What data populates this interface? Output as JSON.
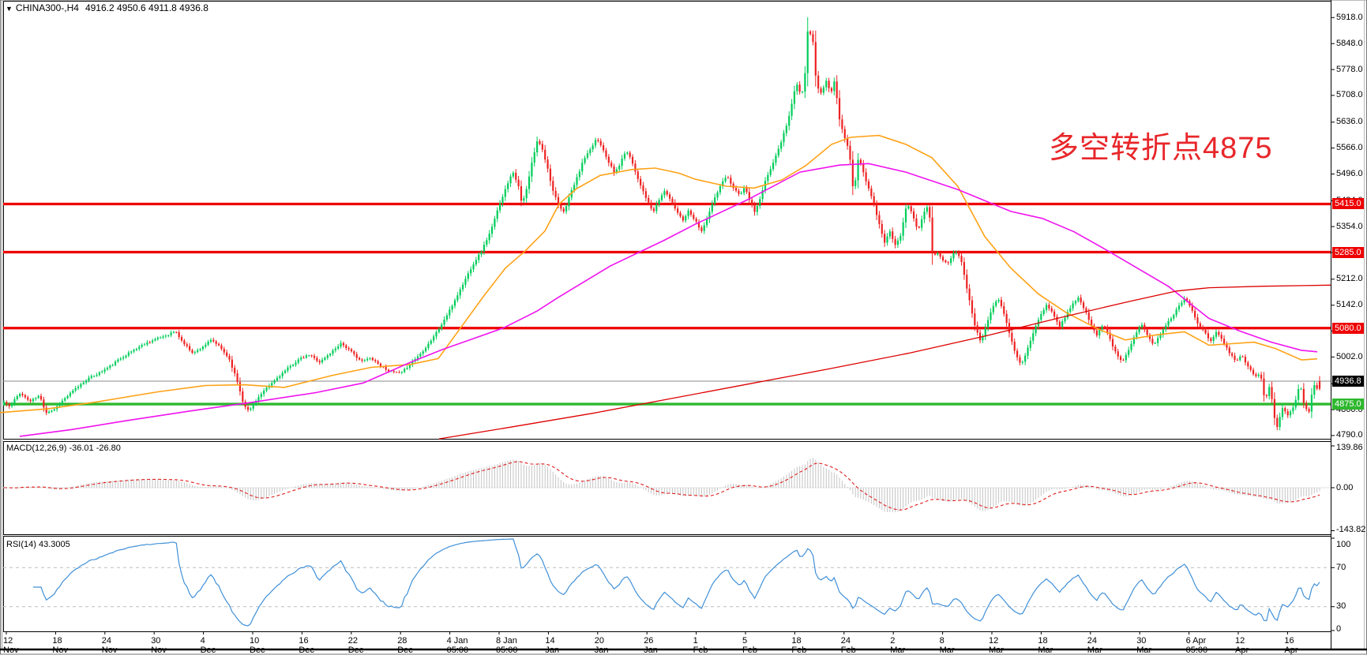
{
  "window": {
    "dropdown_icon": "▼",
    "title_symbol": "CHINA300-,H4",
    "title_ohlc": "4916.2 4950.6 4911.8 4936.8"
  },
  "colors": {
    "up_candle": "#00cd5a",
    "down_candle": "#ee2222",
    "level_line_red": "#ee0000",
    "level_line_green": "#2eb82e",
    "current_price_line": "#888888",
    "ma_fast": "#ffa216",
    "ma_mid": "#ef13ef",
    "ma_slow": "#dd0000",
    "macd_hist": "#c4c4c4",
    "macd_signal": "#e02020",
    "rsi_line": "#4090d8",
    "annotation_red": "#e8262a",
    "badge_black": "#000000"
  },
  "chart_data": {
    "type": "candlestick",
    "symbol": "CHINA300-",
    "timeframe": "H4",
    "title": "CHINA300-,H4 4916.2 4950.6 4911.8 4936.8",
    "last_candle": {
      "open": 4916.2,
      "high": 4950.6,
      "low": 4911.8,
      "close": 4936.8
    },
    "current_price": 4936.8,
    "y_axis": {
      "ticks": [
        5918.0,
        5848.0,
        5778.0,
        5708.0,
        5636.0,
        5566.0,
        5496.0,
        5424.0,
        5354.0,
        5284.0,
        5212.0,
        5142.0,
        5072.0,
        5002.0,
        4930.0,
        4860.0,
        4790.0
      ],
      "range": [
        4781,
        5940
      ]
    },
    "x_axis": {
      "labels": [
        "12 Nov 2020",
        "18 Nov 05:00",
        "24 Nov 05:00",
        "30 Nov 05:00",
        "4 Dec 05:00",
        "10 Dec 05:00",
        "16 Dec 05:00",
        "22 Dec 05:00",
        "28 Dec 05:00",
        "4 Jan 05:00",
        "8 Jan 05:00",
        "14 Jan 05:00",
        "20 Jan 05:00",
        "26 Jan 05:00",
        "1 Feb 05:00",
        "5 Feb 05:00",
        "18 Feb 05:00",
        "24 Feb 05:00",
        "2 Mar 05:00",
        "8 Mar 05:00",
        "12 Mar 05:00",
        "18 Mar 05:00",
        "24 Mar 05:00",
        "30 Mar 05:00",
        "6 Apr 05:00",
        "12 Apr 05:00",
        "16 Apr 05:00"
      ]
    },
    "price_lines": [
      {
        "price": 5415.0,
        "label": "5415.0",
        "color": "#ee0000",
        "width": 3.2
      },
      {
        "price": 5285.0,
        "label": "5285.0",
        "color": "#ee0000",
        "width": 3.2
      },
      {
        "price": 5080.0,
        "label": "5080.0",
        "color": "#ee0000",
        "width": 3.2
      },
      {
        "price": 4875.0,
        "label": "4875.0",
        "color": "#2eb82e",
        "width": 3.4
      }
    ],
    "close_anchors": [
      [
        0,
        4890
      ],
      [
        12,
        4868
      ],
      [
        25,
        4905
      ],
      [
        38,
        4882
      ],
      [
        50,
        4898
      ],
      [
        58,
        4852
      ],
      [
        68,
        4860
      ],
      [
        80,
        4886
      ],
      [
        95,
        4915
      ],
      [
        110,
        4942
      ],
      [
        125,
        4958
      ],
      [
        140,
        4978
      ],
      [
        155,
        5002
      ],
      [
        170,
        5022
      ],
      [
        185,
        5040
      ],
      [
        200,
        5052
      ],
      [
        212,
        5062
      ],
      [
        222,
        5072
      ],
      [
        232,
        5040
      ],
      [
        245,
        5012
      ],
      [
        258,
        5032
      ],
      [
        268,
        5048
      ],
      [
        278,
        5030
      ],
      [
        290,
        4998
      ],
      [
        300,
        4940
      ],
      [
        308,
        4878
      ],
      [
        315,
        4855
      ],
      [
        325,
        4888
      ],
      [
        338,
        4918
      ],
      [
        352,
        4948
      ],
      [
        365,
        4972
      ],
      [
        378,
        4995
      ],
      [
        392,
        5008
      ],
      [
        405,
        4988
      ],
      [
        418,
        5012
      ],
      [
        432,
        5040
      ],
      [
        445,
        5015
      ],
      [
        458,
        4990
      ],
      [
        470,
        5000
      ],
      [
        482,
        4978
      ],
      [
        495,
        4962
      ],
      [
        508,
        4958
      ],
      [
        520,
        4985
      ],
      [
        533,
        5012
      ],
      [
        545,
        5045
      ],
      [
        557,
        5082
      ],
      [
        570,
        5130
      ],
      [
        583,
        5185
      ],
      [
        597,
        5245
      ],
      [
        610,
        5290
      ],
      [
        622,
        5345
      ],
      [
        633,
        5418
      ],
      [
        641,
        5460
      ],
      [
        649,
        5505
      ],
      [
        656,
        5468
      ],
      [
        661,
        5412
      ],
      [
        668,
        5465
      ],
      [
        674,
        5532
      ],
      [
        681,
        5590
      ],
      [
        687,
        5562
      ],
      [
        693,
        5515
      ],
      [
        700,
        5452
      ],
      [
        707,
        5412
      ],
      [
        714,
        5392
      ],
      [
        722,
        5442
      ],
      [
        730,
        5482
      ],
      [
        739,
        5535
      ],
      [
        748,
        5562
      ],
      [
        755,
        5592
      ],
      [
        762,
        5572
      ],
      [
        770,
        5532
      ],
      [
        778,
        5498
      ],
      [
        785,
        5522
      ],
      [
        792,
        5558
      ],
      [
        799,
        5540
      ],
      [
        806,
        5492
      ],
      [
        813,
        5458
      ],
      [
        820,
        5422
      ],
      [
        827,
        5392
      ],
      [
        835,
        5428
      ],
      [
        842,
        5452
      ],
      [
        850,
        5422
      ],
      [
        858,
        5392
      ],
      [
        865,
        5372
      ],
      [
        872,
        5398
      ],
      [
        880,
        5372
      ],
      [
        888,
        5342
      ],
      [
        895,
        5372
      ],
      [
        903,
        5422
      ],
      [
        912,
        5462
      ],
      [
        920,
        5492
      ],
      [
        928,
        5462
      ],
      [
        936,
        5440
      ],
      [
        943,
        5458
      ],
      [
        950,
        5422
      ],
      [
        956,
        5392
      ],
      [
        963,
        5432
      ],
      [
        970,
        5482
      ],
      [
        978,
        5522
      ],
      [
        985,
        5558
      ],
      [
        992,
        5602
      ],
      [
        998,
        5642
      ],
      [
        1003,
        5688
      ],
      [
        1008,
        5742
      ],
      [
        1013,
        5715
      ],
      [
        1018,
        5724
      ],
      [
        1023,
        5891
      ],
      [
        1029,
        5862
      ],
      [
        1034,
        5732
      ],
      [
        1040,
        5715
      ],
      [
        1046,
        5748
      ],
      [
        1052,
        5712
      ],
      [
        1057,
        5748
      ],
      [
        1063,
        5642
      ],
      [
        1069,
        5598
      ],
      [
        1075,
        5562
      ],
      [
        1081,
        5442
      ],
      [
        1087,
        5542
      ],
      [
        1093,
        5502
      ],
      [
        1099,
        5462
      ],
      [
        1106,
        5422
      ],
      [
        1113,
        5362
      ],
      [
        1120,
        5312
      ],
      [
        1127,
        5342
      ],
      [
        1133,
        5305
      ],
      [
        1141,
        5332
      ],
      [
        1148,
        5415
      ],
      [
        1155,
        5392
      ],
      [
        1162,
        5342
      ],
      [
        1170,
        5392
      ],
      [
        1176,
        5412
      ],
      [
        1181,
        5272
      ],
      [
        1188,
        5282
      ],
      [
        1195,
        5262
      ],
      [
        1202,
        5256
      ],
      [
        1209,
        5292
      ],
      [
        1216,
        5272
      ],
      [
        1222,
        5212
      ],
      [
        1228,
        5152
      ],
      [
        1235,
        5082
      ],
      [
        1242,
        5042
      ],
      [
        1249,
        5092
      ],
      [
        1256,
        5132
      ],
      [
        1263,
        5162
      ],
      [
        1271,
        5122
      ],
      [
        1279,
        5062
      ],
      [
        1286,
        5012
      ],
      [
        1293,
        4978
      ],
      [
        1301,
        5022
      ],
      [
        1309,
        5072
      ],
      [
        1317,
        5112
      ],
      [
        1325,
        5142
      ],
      [
        1333,
        5122
      ],
      [
        1341,
        5082
      ],
      [
        1349,
        5112
      ],
      [
        1357,
        5142
      ],
      [
        1365,
        5162
      ],
      [
        1373,
        5132
      ],
      [
        1381,
        5092
      ],
      [
        1389,
        5062
      ],
      [
        1397,
        5092
      ],
      [
        1405,
        5052
      ],
      [
        1413,
        5012
      ],
      [
        1421,
        4988
      ],
      [
        1429,
        5022
      ],
      [
        1437,
        5062
      ],
      [
        1445,
        5092
      ],
      [
        1453,
        5062
      ],
      [
        1461,
        5032
      ],
      [
        1469,
        5062
      ],
      [
        1477,
        5092
      ],
      [
        1485,
        5112
      ],
      [
        1493,
        5142
      ],
      [
        1501,
        5162
      ],
      [
        1509,
        5132
      ],
      [
        1517,
        5092
      ],
      [
        1525,
        5072
      ],
      [
        1533,
        5042
      ],
      [
        1541,
        5072
      ],
      [
        1549,
        5042
      ],
      [
        1557,
        5012
      ],
      [
        1565,
        4992
      ],
      [
        1573,
        5006
      ],
      [
        1581,
        4972
      ],
      [
        1589,
        4952
      ],
      [
        1596,
        4958
      ],
      [
        1602,
        4882
      ],
      [
        1608,
        4926
      ],
      [
        1616,
        4806
      ],
      [
        1624,
        4862
      ],
      [
        1631,
        4846
      ],
      [
        1639,
        4872
      ],
      [
        1646,
        4929
      ],
      [
        1652,
        4868
      ],
      [
        1658,
        4854
      ],
      [
        1663,
        4929
      ],
      [
        1668,
        4916
      ],
      [
        1672,
        4936.8
      ]
    ],
    "moving_averages": [
      {
        "name": "fast-ma",
        "color": "#ffa216",
        "width": 1.6,
        "points": [
          [
            0,
            4852
          ],
          [
            60,
            4862
          ],
          [
            120,
            4880
          ],
          [
            200,
            4908
          ],
          [
            260,
            4925
          ],
          [
            310,
            4927
          ],
          [
            360,
            4920
          ],
          [
            420,
            4952
          ],
          [
            470,
            4974
          ],
          [
            520,
            4982
          ],
          [
            555,
            4998
          ],
          [
            583,
            5080
          ],
          [
            612,
            5165
          ],
          [
            640,
            5242
          ],
          [
            665,
            5288
          ],
          [
            690,
            5342
          ],
          [
            708,
            5415
          ],
          [
            730,
            5456
          ],
          [
            760,
            5492
          ],
          [
            800,
            5508
          ],
          [
            830,
            5512
          ],
          [
            860,
            5498
          ],
          [
            880,
            5482
          ],
          [
            920,
            5463
          ],
          [
            955,
            5458
          ],
          [
            990,
            5480
          ],
          [
            1020,
            5518
          ],
          [
            1053,
            5576
          ],
          [
            1077,
            5595
          ],
          [
            1113,
            5600
          ],
          [
            1147,
            5576
          ],
          [
            1180,
            5540
          ],
          [
            1213,
            5462
          ],
          [
            1247,
            5327
          ],
          [
            1280,
            5242
          ],
          [
            1315,
            5172
          ],
          [
            1350,
            5122
          ],
          [
            1390,
            5078
          ],
          [
            1425,
            5048
          ],
          [
            1465,
            5062
          ],
          [
            1500,
            5070
          ],
          [
            1531,
            5034
          ],
          [
            1560,
            5038
          ],
          [
            1588,
            5042
          ],
          [
            1615,
            5025
          ],
          [
            1648,
            4994
          ],
          [
            1668,
            4997
          ]
        ]
      },
      {
        "name": "mid-ma",
        "color": "#ef13ef",
        "width": 1.6,
        "points": [
          [
            25,
            4788
          ],
          [
            90,
            4806
          ],
          [
            160,
            4830
          ],
          [
            240,
            4856
          ],
          [
            320,
            4880
          ],
          [
            400,
            4906
          ],
          [
            460,
            4932
          ],
          [
            520,
            4988
          ],
          [
            560,
            5022
          ],
          [
            600,
            5052
          ],
          [
            637,
            5080
          ],
          [
            680,
            5126
          ],
          [
            707,
            5163
          ],
          [
            773,
            5248
          ],
          [
            840,
            5316
          ],
          [
            880,
            5360
          ],
          [
            947,
            5427
          ],
          [
            1013,
            5501
          ],
          [
            1063,
            5520
          ],
          [
            1100,
            5524
          ],
          [
            1147,
            5501
          ],
          [
            1213,
            5454
          ],
          [
            1280,
            5395
          ],
          [
            1320,
            5376
          ],
          [
            1360,
            5340
          ],
          [
            1400,
            5292
          ],
          [
            1440,
            5242
          ],
          [
            1480,
            5192
          ],
          [
            1531,
            5106
          ],
          [
            1570,
            5072
          ],
          [
            1610,
            5042
          ],
          [
            1648,
            5020
          ],
          [
            1668,
            5016
          ]
        ]
      },
      {
        "name": "slow-ma",
        "color": "#dd0000",
        "width": 1.3,
        "points": [
          [
            556,
            4781
          ],
          [
            650,
            4814
          ],
          [
            750,
            4850
          ],
          [
            850,
            4890
          ],
          [
            950,
            4930
          ],
          [
            1050,
            4970
          ],
          [
            1150,
            5012
          ],
          [
            1250,
            5060
          ],
          [
            1350,
            5112
          ],
          [
            1430,
            5152
          ],
          [
            1490,
            5180
          ],
          [
            1531,
            5189
          ],
          [
            1600,
            5193
          ],
          [
            1685,
            5196
          ]
        ]
      }
    ],
    "annotation": {
      "text": "多空转折点4875",
      "color": "#e8262a",
      "refers_to_price": 4875
    },
    "panels": {
      "macd": {
        "label": "MACD(12,26,9) -36.01 -26.80",
        "params": [
          12,
          26,
          9
        ],
        "main_value": -36.01,
        "signal_value": -26.8,
        "axis": [
          139.86,
          0.0,
          -143.82
        ]
      },
      "rsi": {
        "label": "RSI(14) 43.3005",
        "period": 14,
        "value": 43.3005,
        "axis": [
          100,
          70,
          30,
          0
        ],
        "levels": [
          70,
          30
        ]
      }
    }
  }
}
